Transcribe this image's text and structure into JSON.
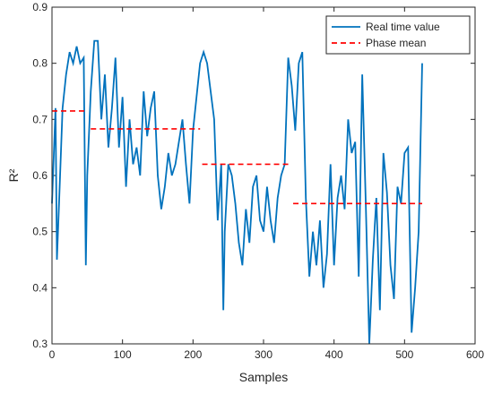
{
  "chart_data": {
    "type": "line",
    "xlabel": "Samples",
    "ylabel": "R²",
    "xlim": [
      0,
      600
    ],
    "xticks": [
      0,
      100,
      200,
      300,
      400,
      500,
      600
    ],
    "ylim": [
      0.3,
      0.9
    ],
    "yticks": [
      0.3,
      0.4,
      0.5,
      0.6,
      0.7,
      0.8,
      0.9
    ],
    "grid": false,
    "legend": "upper right",
    "series": [
      {
        "name": "Real time value",
        "color": "#0072bd",
        "style": "solid",
        "x": [
          0,
          5,
          7,
          10,
          15,
          20,
          25,
          30,
          35,
          40,
          45,
          48,
          50,
          55,
          60,
          65,
          70,
          75,
          80,
          85,
          90,
          95,
          100,
          105,
          110,
          115,
          120,
          125,
          130,
          135,
          140,
          145,
          150,
          155,
          160,
          165,
          170,
          175,
          180,
          185,
          190,
          195,
          200,
          205,
          210,
          215,
          220,
          225,
          230,
          235,
          240,
          243,
          245,
          250,
          255,
          260,
          265,
          270,
          275,
          280,
          285,
          290,
          295,
          300,
          305,
          310,
          315,
          320,
          325,
          330,
          335,
          340,
          345,
          350,
          355,
          360,
          365,
          370,
          375,
          380,
          385,
          390,
          395,
          400,
          405,
          410,
          415,
          420,
          425,
          430,
          435,
          440,
          445,
          450,
          455,
          460,
          465,
          470,
          475,
          480,
          485,
          490,
          495,
          500,
          505,
          510,
          515,
          520,
          525
        ],
        "values": [
          0.55,
          0.72,
          0.45,
          0.55,
          0.72,
          0.78,
          0.82,
          0.8,
          0.83,
          0.8,
          0.81,
          0.44,
          0.6,
          0.75,
          0.84,
          0.84,
          0.7,
          0.78,
          0.65,
          0.72,
          0.81,
          0.65,
          0.74,
          0.58,
          0.7,
          0.62,
          0.65,
          0.6,
          0.75,
          0.67,
          0.72,
          0.75,
          0.6,
          0.54,
          0.58,
          0.64,
          0.6,
          0.62,
          0.66,
          0.7,
          0.62,
          0.55,
          0.68,
          0.74,
          0.8,
          0.82,
          0.8,
          0.75,
          0.7,
          0.52,
          0.62,
          0.36,
          0.5,
          0.62,
          0.6,
          0.55,
          0.48,
          0.44,
          0.54,
          0.48,
          0.58,
          0.6,
          0.52,
          0.5,
          0.58,
          0.52,
          0.48,
          0.56,
          0.6,
          0.62,
          0.81,
          0.76,
          0.68,
          0.8,
          0.82,
          0.56,
          0.42,
          0.5,
          0.44,
          0.52,
          0.4,
          0.46,
          0.62,
          0.44,
          0.56,
          0.6,
          0.54,
          0.7,
          0.64,
          0.66,
          0.42,
          0.78,
          0.55,
          0.3,
          0.45,
          0.56,
          0.36,
          0.64,
          0.57,
          0.44,
          0.38,
          0.58,
          0.55,
          0.64,
          0.65,
          0.32,
          0.4,
          0.5,
          0.8
        ]
      },
      {
        "name": "Phase mean",
        "color": "#ff0000",
        "style": "dashed",
        "x": [
          0,
          50,
          52,
          55,
          210,
          211,
          213,
          340,
          341,
          342,
          525
        ],
        "values": [
          0.715,
          0.715,
          null,
          0.683,
          0.683,
          null,
          0.62,
          0.62,
          null,
          0.55,
          0.55
        ]
      }
    ]
  }
}
